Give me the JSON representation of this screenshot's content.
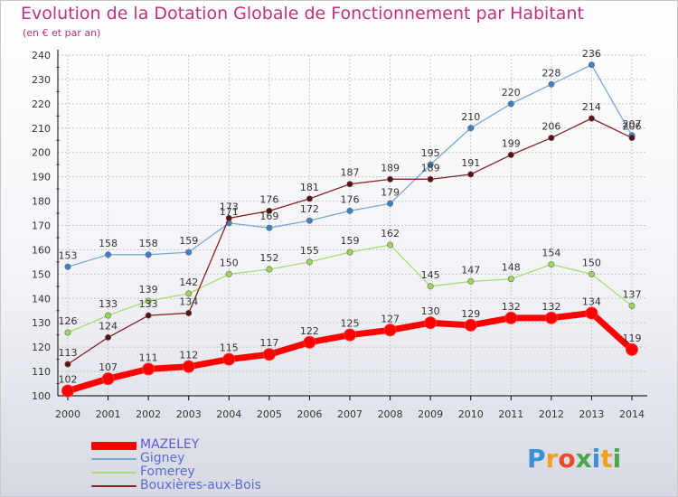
{
  "title": "Evolution de la Dotation Globale de Fonctionnement par Habitant",
  "subtitle": "(en € et par an)",
  "colors": {
    "title": "#c2307e",
    "grid": "#c8c8c8",
    "axis": "#000000",
    "tick_red": "#d83a3a",
    "label": "#333333"
  },
  "logo": {
    "text": "Proxiti",
    "letter_colors": [
      "#3b8fd6",
      "#f0a020",
      "#e84a2a",
      "#4aa84a",
      "#3b8fd6",
      "#f0a020",
      "#4aa84a"
    ]
  },
  "chart_data": {
    "type": "line",
    "title": "Evolution de la Dotation Globale de Fonctionnement par Habitant",
    "subtitle": "(en € et par an)",
    "xlabel": "",
    "ylabel": "",
    "ylim": [
      100,
      240
    ],
    "yticks": [
      "100",
      "110",
      "120",
      "130",
      "140",
      "150",
      "160",
      "170",
      "180",
      "190",
      "200",
      "210",
      "220",
      "230",
      "240"
    ],
    "x": [
      "2000",
      "2001",
      "2002",
      "2003",
      "2004",
      "2005",
      "2006",
      "2007",
      "2008",
      "2009",
      "2010",
      "2011",
      "2012",
      "2013",
      "2014"
    ],
    "grid": true,
    "legend_position": "bottom-left",
    "series": [
      {
        "name": "MAZELEY",
        "color": "#ff0000",
        "values": [
          102,
          107,
          111,
          112,
          115,
          117,
          122,
          125,
          127,
          130,
          129,
          132,
          132,
          134,
          119
        ],
        "labels": [
          "102",
          "107",
          "111",
          "112",
          "115",
          "117",
          "122",
          "125",
          "127",
          "130",
          "129",
          "132",
          "132",
          "134",
          "119"
        ]
      },
      {
        "name": "Gigney",
        "color": "#7ba7d4",
        "marker": "#3b82c6",
        "values": [
          153,
          158,
          158,
          159,
          171,
          169,
          172,
          176,
          179,
          195,
          210,
          220,
          228,
          236,
          207
        ],
        "labels": [
          "153",
          "158",
          "158",
          "159",
          "171",
          "169",
          "172",
          "176",
          "179",
          "195",
          "210",
          "220",
          "228",
          "236",
          "207"
        ]
      },
      {
        "name": "Fomerey",
        "color": "#a6dd6e",
        "marker": "#9ad85a",
        "values": [
          126,
          133,
          139,
          142,
          150,
          152,
          155,
          159,
          162,
          145,
          147,
          148,
          154,
          150,
          137
        ],
        "labels": [
          "126",
          "133",
          "139",
          "142",
          "150",
          "152",
          "155",
          "159",
          "162",
          "145",
          "147",
          "148",
          "154",
          "150",
          "137"
        ]
      },
      {
        "name": "Bouxières-aux-Bois",
        "color": "#8a2020",
        "marker": "#5a1010",
        "values": [
          113,
          124,
          133,
          134,
          173,
          176,
          181,
          187,
          189,
          189,
          191,
          199,
          206,
          214,
          206
        ],
        "labels": [
          "113",
          "124",
          "133",
          "134",
          "173",
          "176",
          "181",
          "187",
          "189",
          "189",
          "191",
          "199",
          "206",
          "214",
          "206"
        ]
      }
    ]
  }
}
